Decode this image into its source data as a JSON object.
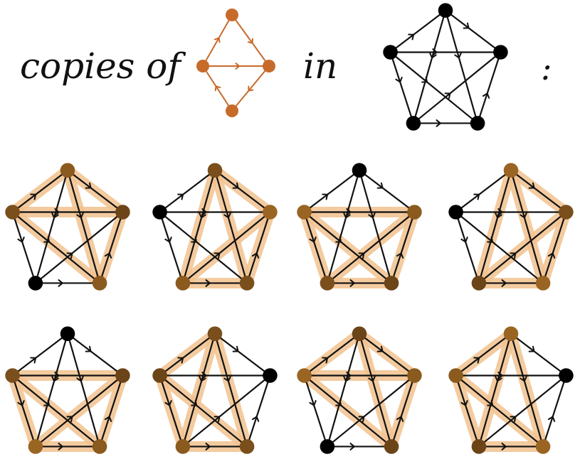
{
  "header": {
    "copies_label": "copies of",
    "in_label": "in",
    "colon_label": ":"
  },
  "colors": {
    "edge": "#111111",
    "node_default": "#000000",
    "pattern_edge": "#c76b2b",
    "pattern_node": "#c76b2b",
    "highlight": "#f2c28f",
    "node_shades": [
      "#8a5a1e",
      "#7a4f1c",
      "#6b4418",
      "#9a6422"
    ]
  },
  "pattern_graph": {
    "nodes": [
      "top",
      "left",
      "right",
      "bottom"
    ],
    "edges": [
      {
        "from": "top",
        "to": "right"
      },
      {
        "from": "left",
        "to": "top"
      },
      {
        "from": "left",
        "to": "right"
      },
      {
        "from": "right",
        "to": "bottom"
      },
      {
        "from": "bottom",
        "to": "left"
      }
    ]
  },
  "host_graph": {
    "nodes": [
      "v0",
      "v1",
      "v2",
      "v3",
      "v4"
    ],
    "edges": [
      {
        "from": "v1",
        "to": "v0"
      },
      {
        "from": "v0",
        "to": "v2"
      },
      {
        "from": "v1",
        "to": "v2"
      },
      {
        "from": "v3",
        "to": "v4"
      },
      {
        "from": "v1",
        "to": "v3"
      },
      {
        "from": "v4",
        "to": "v2"
      },
      {
        "from": "v0",
        "to": "v3"
      },
      {
        "from": "v0",
        "to": "v4"
      },
      {
        "from": "v1",
        "to": "v4"
      },
      {
        "from": "v3",
        "to": "v2"
      }
    ]
  },
  "copies": [
    {
      "nodes": [
        "v0",
        "v1",
        "v2",
        "v4"
      ]
    },
    {
      "nodes": [
        "v0",
        "v2",
        "v3",
        "v4"
      ]
    },
    {
      "nodes": [
        "v1",
        "v2",
        "v3",
        "v4"
      ]
    },
    {
      "nodes": [
        "v0",
        "v2",
        "v3",
        "v4"
      ]
    },
    {
      "nodes": [
        "v1",
        "v2",
        "v3",
        "v4"
      ]
    },
    {
      "nodes": [
        "v0",
        "v1",
        "v3",
        "v4"
      ]
    },
    {
      "nodes": [
        "v0",
        "v1",
        "v2",
        "v4"
      ]
    },
    {
      "nodes": [
        "v0",
        "v1",
        "v3",
        "v4"
      ]
    }
  ]
}
